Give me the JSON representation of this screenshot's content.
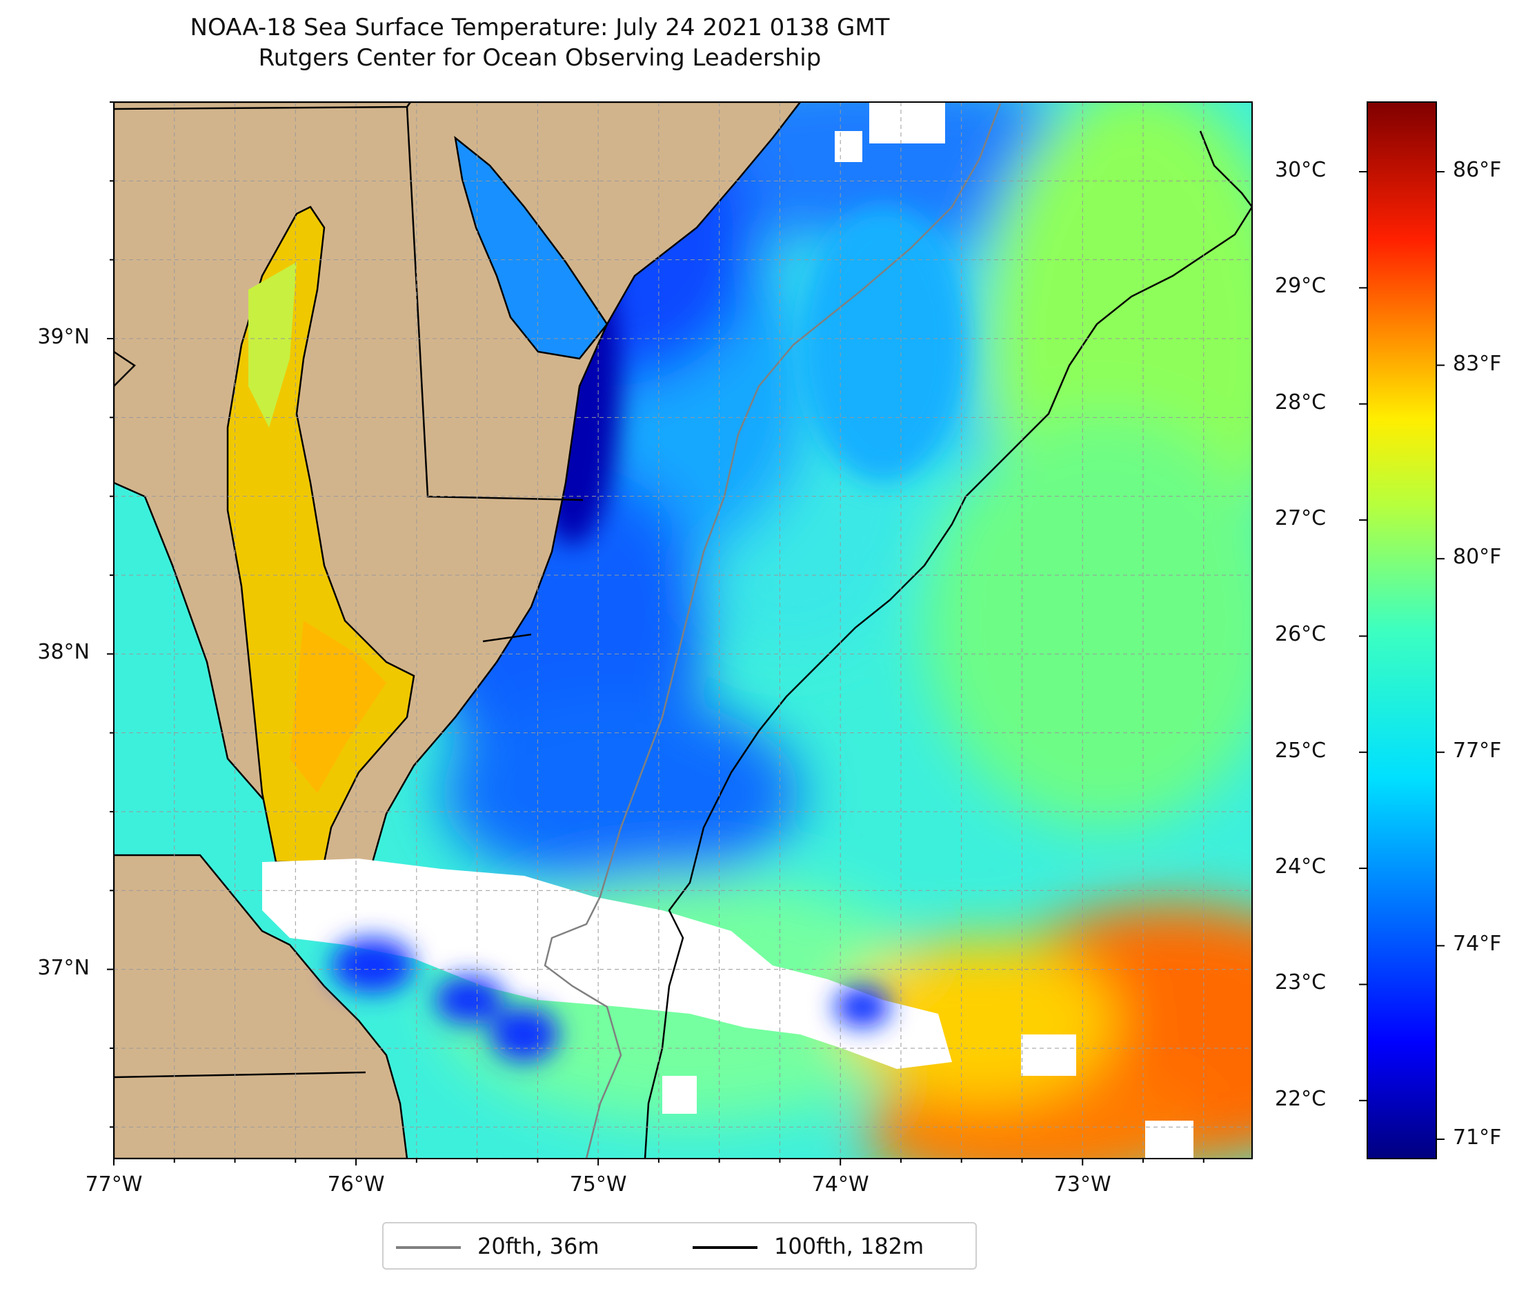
{
  "title": "NOAA-18 Sea Surface Temperature: July 24 2021 0138 GMT",
  "subtitle": "Rutgers Center for Ocean Observing Leadership",
  "map": {
    "extent": {
      "lon_min": -77.0,
      "lon_max": -72.3,
      "lat_min": 36.4,
      "lat_max": 39.75
    },
    "x_ticks": [
      "77°W",
      "76°W",
      "75°W",
      "74°W",
      "73°W"
    ],
    "y_ticks": [
      "37°N",
      "38°N",
      "39°N"
    ],
    "land_color": "#d2b48c",
    "no_data_color": "#ffffff",
    "gridlines": true,
    "colormap": "jet"
  },
  "colorbar": {
    "celsius_ticks": [
      "22°C",
      "23°C",
      "24°C",
      "25°C",
      "26°C",
      "27°C",
      "28°C",
      "29°C",
      "30°C"
    ],
    "fahrenheit_ticks": [
      "71°F",
      "74°F",
      "77°F",
      "80°F",
      "83°F",
      "86°F"
    ],
    "range_c": [
      21.5,
      30.6
    ]
  },
  "legend": {
    "placement": "bottom-center",
    "items": [
      {
        "label": "20fth, 36m",
        "color": "#808080"
      },
      {
        "label": "100fth, 182m",
        "color": "#000000"
      }
    ]
  }
}
